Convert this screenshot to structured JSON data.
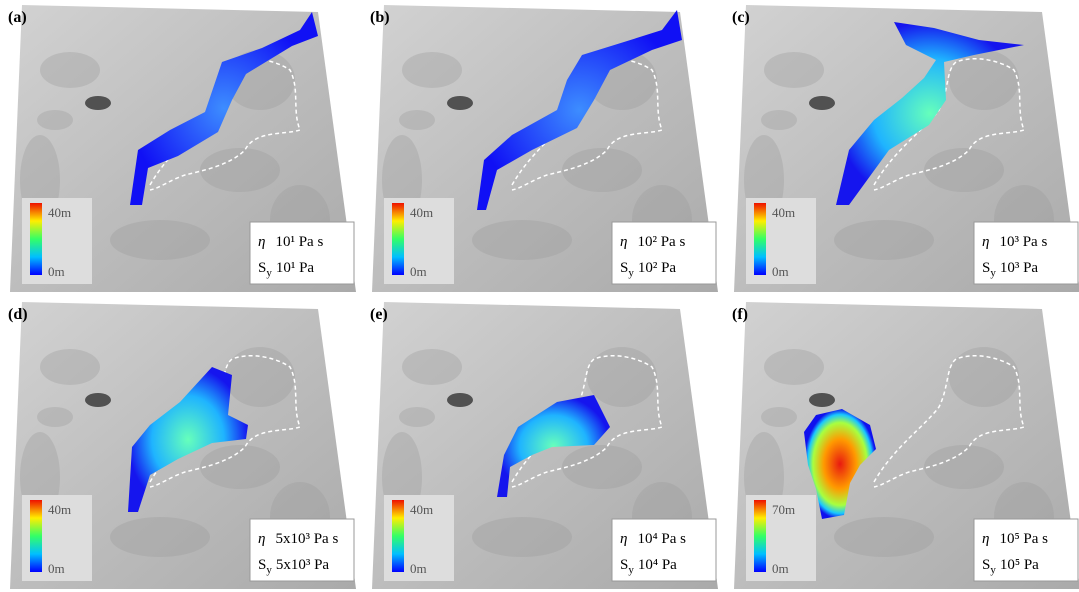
{
  "panels": [
    {
      "label": "(a)",
      "colorbar_max": "40m",
      "colorbar_min": "0m",
      "eta_symbol": "η",
      "viscosity": "10¹ Pa s",
      "yield_symbol": "S",
      "yield_subscript": "y",
      "yield_stress": "10¹ Pa"
    },
    {
      "label": "(b)",
      "colorbar_max": "40m",
      "colorbar_min": "0m",
      "eta_symbol": "η",
      "viscosity": "10² Pa s",
      "yield_symbol": "S",
      "yield_subscript": "y",
      "yield_stress": "10² Pa"
    },
    {
      "label": "(c)",
      "colorbar_max": "40m",
      "colorbar_min": "0m",
      "eta_symbol": "η",
      "viscosity": "10³ Pa s",
      "yield_symbol": "S",
      "yield_subscript": "y",
      "yield_stress": "10³ Pa"
    },
    {
      "label": "(d)",
      "colorbar_max": "40m",
      "colorbar_min": "0m",
      "eta_symbol": "η",
      "viscosity": "5x10³ Pa s",
      "yield_symbol": "S",
      "yield_subscript": "y",
      "yield_stress": "5x10³ Pa"
    },
    {
      "label": "(e)",
      "colorbar_max": "40m",
      "colorbar_min": "0m",
      "eta_symbol": "η",
      "viscosity": "10⁴ Pa s",
      "yield_symbol": "S",
      "yield_subscript": "y",
      "yield_stress": "10⁴ Pa"
    },
    {
      "label": "(f)",
      "colorbar_max": "70m",
      "colorbar_min": "0m",
      "eta_symbol": "η",
      "viscosity": "10⁵ Pa s",
      "yield_symbol": "S",
      "yield_subscript": "y",
      "yield_stress": "10⁵ Pa"
    }
  ]
}
